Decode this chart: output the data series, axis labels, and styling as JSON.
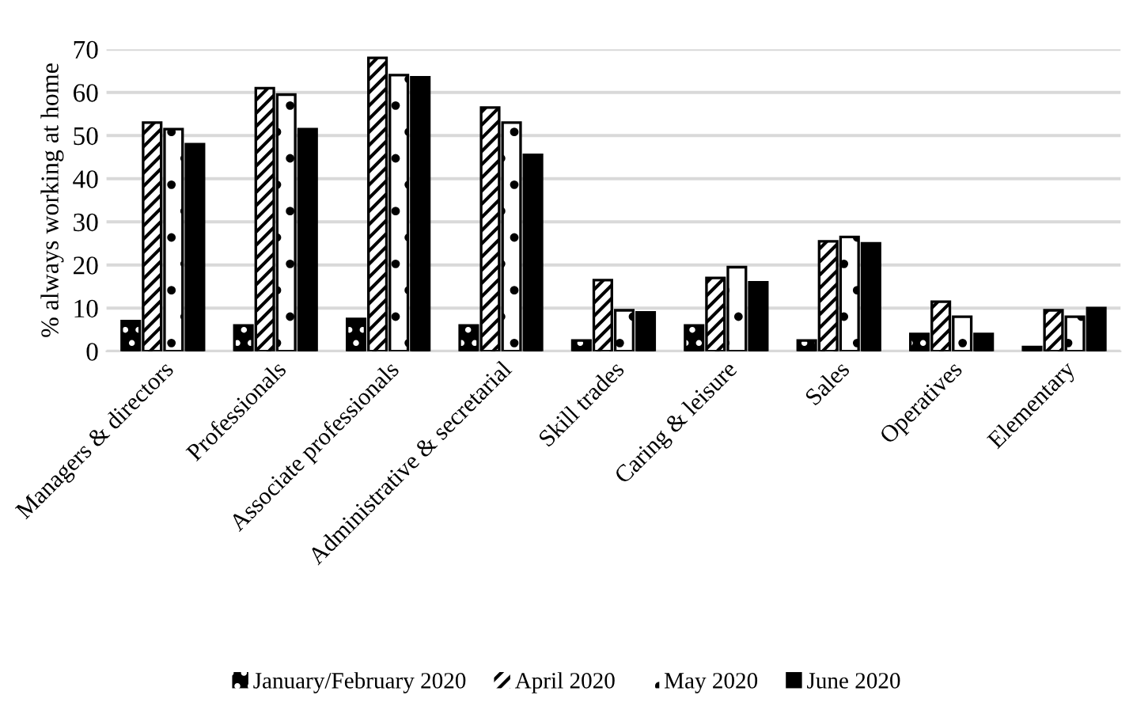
{
  "chart_data": {
    "type": "bar",
    "ylabel": "% always working at home",
    "categories": [
      "Managers & directors",
      "Professionals",
      "Associate professionals",
      "Administrative & secretarial",
      "Skill trades",
      "Caring & leisure",
      "Sales",
      "Operatives",
      "Elementary"
    ],
    "series": [
      {
        "name": "January/February 2020",
        "color": "#000000",
        "values": [
          7,
          6,
          7.5,
          6,
          2.5,
          6,
          2.5,
          4,
          1
        ]
      },
      {
        "name": "April 2020",
        "color": "#ffffff",
        "values": [
          53,
          61,
          68,
          56.5,
          16.5,
          17,
          25.5,
          11.5,
          9.5
        ]
      },
      {
        "name": "May 2020",
        "color": "#ffffff",
        "values": [
          51.5,
          59.5,
          64,
          53,
          9.5,
          19.5,
          26.5,
          8,
          8
        ]
      },
      {
        "name": "June 2020",
        "color": "#000000",
        "values": [
          48,
          51.5,
          63.5,
          45.5,
          9,
          16,
          25,
          4,
          10
        ]
      }
    ],
    "ylim": [
      0,
      70
    ],
    "yticks": [
      0,
      10,
      20,
      30,
      40,
      50,
      60,
      70
    ],
    "grid": "y",
    "legend": "bottom"
  }
}
